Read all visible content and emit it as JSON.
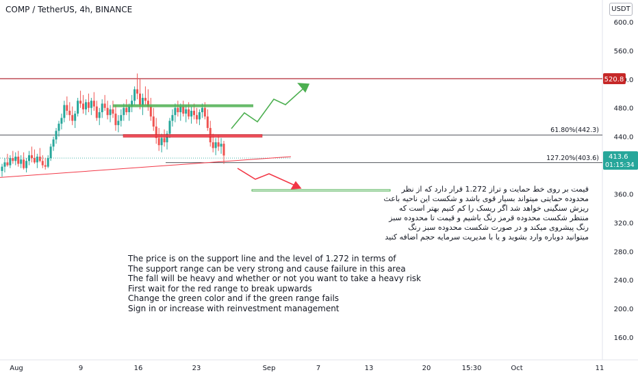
{
  "header": {
    "symbol_title": "COMP / TetherUS, 4h, BINANCE",
    "currency_button": "USDT"
  },
  "colors": {
    "up": "#26a69a",
    "down": "#ef5350",
    "resistance": "#b22833",
    "green_zone": "#4caf50",
    "red_zone": "#f23645",
    "price_tag": "#26a69a",
    "resistance_tag": "#c62828"
  },
  "chart_data": {
    "type": "candlestick",
    "title": "COMP / TetherUS, 4h, BINANCE",
    "ylim": [
      140,
      620
    ],
    "y_ticks": [
      160,
      200,
      240,
      280,
      320,
      360,
      400,
      440,
      480,
      520,
      560,
      600
    ],
    "y_tick_labels": [
      "160.0",
      "200.0",
      "240.0",
      "280.0",
      "320.0",
      "360.0",
      "400.0",
      "440.0",
      "480.0",
      "520.0",
      "560.0",
      "600.0"
    ],
    "x_ticks": [
      "Aug",
      "9",
      "16",
      "23",
      "Sep",
      "7",
      "13",
      "20",
      "15:30",
      "Oct",
      "11"
    ],
    "candles": [
      {
        "o": 392,
        "h": 402,
        "l": 384,
        "c": 398
      },
      {
        "o": 398,
        "h": 410,
        "l": 390,
        "c": 404
      },
      {
        "o": 404,
        "h": 416,
        "l": 398,
        "c": 400
      },
      {
        "o": 400,
        "h": 414,
        "l": 396,
        "c": 410
      },
      {
        "o": 410,
        "h": 420,
        "l": 402,
        "c": 406
      },
      {
        "o": 406,
        "h": 418,
        "l": 400,
        "c": 412
      },
      {
        "o": 412,
        "h": 420,
        "l": 398,
        "c": 402
      },
      {
        "o": 402,
        "h": 414,
        "l": 396,
        "c": 408
      },
      {
        "o": 408,
        "h": 418,
        "l": 394,
        "c": 396
      },
      {
        "o": 396,
        "h": 410,
        "l": 390,
        "c": 406
      },
      {
        "o": 406,
        "h": 420,
        "l": 400,
        "c": 414
      },
      {
        "o": 414,
        "h": 426,
        "l": 404,
        "c": 410
      },
      {
        "o": 410,
        "h": 422,
        "l": 402,
        "c": 404
      },
      {
        "o": 404,
        "h": 416,
        "l": 396,
        "c": 412
      },
      {
        "o": 412,
        "h": 424,
        "l": 404,
        "c": 406
      },
      {
        "o": 406,
        "h": 414,
        "l": 396,
        "c": 400
      },
      {
        "o": 400,
        "h": 410,
        "l": 394,
        "c": 398
      },
      {
        "o": 398,
        "h": 414,
        "l": 396,
        "c": 410
      },
      {
        "o": 410,
        "h": 430,
        "l": 406,
        "c": 426
      },
      {
        "o": 426,
        "h": 440,
        "l": 420,
        "c": 436
      },
      {
        "o": 436,
        "h": 452,
        "l": 430,
        "c": 448
      },
      {
        "o": 448,
        "h": 462,
        "l": 440,
        "c": 458
      },
      {
        "o": 458,
        "h": 472,
        "l": 450,
        "c": 466
      },
      {
        "o": 466,
        "h": 490,
        "l": 460,
        "c": 484
      },
      {
        "o": 484,
        "h": 496,
        "l": 470,
        "c": 476
      },
      {
        "o": 476,
        "h": 488,
        "l": 462,
        "c": 470
      },
      {
        "o": 470,
        "h": 482,
        "l": 456,
        "c": 462
      },
      {
        "o": 462,
        "h": 476,
        "l": 452,
        "c": 472
      },
      {
        "o": 472,
        "h": 494,
        "l": 468,
        "c": 490
      },
      {
        "o": 490,
        "h": 504,
        "l": 480,
        "c": 486
      },
      {
        "o": 486,
        "h": 498,
        "l": 472,
        "c": 478
      },
      {
        "o": 478,
        "h": 492,
        "l": 470,
        "c": 488
      },
      {
        "o": 488,
        "h": 500,
        "l": 474,
        "c": 480
      },
      {
        "o": 480,
        "h": 494,
        "l": 470,
        "c": 490
      },
      {
        "o": 490,
        "h": 502,
        "l": 476,
        "c": 482
      },
      {
        "o": 482,
        "h": 490,
        "l": 462,
        "c": 466
      },
      {
        "o": 466,
        "h": 480,
        "l": 456,
        "c": 474
      },
      {
        "o": 474,
        "h": 492,
        "l": 466,
        "c": 486
      },
      {
        "o": 486,
        "h": 498,
        "l": 476,
        "c": 480
      },
      {
        "o": 480,
        "h": 490,
        "l": 464,
        "c": 470
      },
      {
        "o": 470,
        "h": 484,
        "l": 460,
        "c": 478
      },
      {
        "o": 478,
        "h": 490,
        "l": 466,
        "c": 472
      },
      {
        "o": 472,
        "h": 484,
        "l": 448,
        "c": 456
      },
      {
        "o": 456,
        "h": 470,
        "l": 446,
        "c": 462
      },
      {
        "o": 462,
        "h": 478,
        "l": 454,
        "c": 470
      },
      {
        "o": 470,
        "h": 486,
        "l": 462,
        "c": 480
      },
      {
        "o": 480,
        "h": 492,
        "l": 470,
        "c": 474
      },
      {
        "o": 474,
        "h": 486,
        "l": 462,
        "c": 482
      },
      {
        "o": 482,
        "h": 498,
        "l": 474,
        "c": 490
      },
      {
        "o": 490,
        "h": 510,
        "l": 484,
        "c": 506
      },
      {
        "o": 506,
        "h": 528,
        "l": 492,
        "c": 500
      },
      {
        "o": 500,
        "h": 520,
        "l": 478,
        "c": 484
      },
      {
        "o": 484,
        "h": 500,
        "l": 470,
        "c": 494
      },
      {
        "o": 494,
        "h": 510,
        "l": 484,
        "c": 490
      },
      {
        "o": 490,
        "h": 506,
        "l": 476,
        "c": 482
      },
      {
        "o": 482,
        "h": 494,
        "l": 462,
        "c": 468
      },
      {
        "o": 468,
        "h": 480,
        "l": 448,
        "c": 454
      },
      {
        "o": 454,
        "h": 466,
        "l": 430,
        "c": 438
      },
      {
        "o": 438,
        "h": 452,
        "l": 420,
        "c": 428
      },
      {
        "o": 428,
        "h": 444,
        "l": 418,
        "c": 438
      },
      {
        "o": 438,
        "h": 450,
        "l": 426,
        "c": 432
      },
      {
        "o": 432,
        "h": 448,
        "l": 422,
        "c": 444
      },
      {
        "o": 444,
        "h": 466,
        "l": 438,
        "c": 462
      },
      {
        "o": 462,
        "h": 478,
        "l": 454,
        "c": 470
      },
      {
        "o": 470,
        "h": 486,
        "l": 460,
        "c": 480
      },
      {
        "o": 480,
        "h": 490,
        "l": 468,
        "c": 474
      },
      {
        "o": 474,
        "h": 486,
        "l": 462,
        "c": 482
      },
      {
        "o": 482,
        "h": 490,
        "l": 468,
        "c": 472
      },
      {
        "o": 472,
        "h": 484,
        "l": 460,
        "c": 478
      },
      {
        "o": 478,
        "h": 488,
        "l": 464,
        "c": 468
      },
      {
        "o": 468,
        "h": 482,
        "l": 458,
        "c": 476
      },
      {
        "o": 476,
        "h": 486,
        "l": 464,
        "c": 470
      },
      {
        "o": 470,
        "h": 480,
        "l": 458,
        "c": 464
      },
      {
        "o": 464,
        "h": 478,
        "l": 456,
        "c": 474
      },
      {
        "o": 474,
        "h": 486,
        "l": 466,
        "c": 480
      },
      {
        "o": 480,
        "h": 488,
        "l": 464,
        "c": 468
      },
      {
        "o": 468,
        "h": 478,
        "l": 448,
        "c": 452
      },
      {
        "o": 452,
        "h": 462,
        "l": 426,
        "c": 432
      },
      {
        "o": 432,
        "h": 444,
        "l": 418,
        "c": 424
      },
      {
        "o": 424,
        "h": 438,
        "l": 414,
        "c": 432
      },
      {
        "o": 432,
        "h": 442,
        "l": 420,
        "c": 426
      },
      {
        "o": 426,
        "h": 438,
        "l": 416,
        "c": 430
      },
      {
        "o": 430,
        "h": 434,
        "l": 402,
        "c": 413.6
      }
    ],
    "horizontal_levels": [
      {
        "value": 520.8,
        "label": "520.8"
      },
      {
        "value": 442.3,
        "label": "61.80%(442.3)"
      },
      {
        "value": 403.6,
        "label": "127.20%(403.6)"
      }
    ],
    "zones": [
      {
        "color": "green",
        "from": 481,
        "to": 485
      },
      {
        "color": "red",
        "from": 439,
        "to": 443
      },
      {
        "color": "green",
        "from": 364,
        "to": 366
      }
    ],
    "current_price": "413.6",
    "countdown": "01:15:34",
    "fib_labels": [
      "61.80%(442.3)",
      "127.20%(403.6)"
    ],
    "resistance_label": "520.8"
  },
  "notes": {
    "persian": [
      "قیمت بر روی خط حمایت و تراز 1.272 قرار دارد که از نظر",
      "محدوده حمایتی میتواند بسیار قوی باشد و شکست این ناحیه باعث",
      "ریزش سنگینی خواهد شد اگر ریسک را کم کنیم بهتر است که",
      "منتظر شکست محدوده قرمز رنگ باشیم و قیمت تا محدوده سبز",
      "رنگ پیشروی میکند و در صورت شکست محدوده سبز رنگ",
      "میتوانید دوباره وارد بشوید و یا با مدیریت سرمایه حجم اضافه کنید"
    ],
    "english": [
      "The price is on the support line and the level of 1.272 in terms of",
      "The support range can be very strong and cause failure in this area",
      "The fall will be heavy and whether or not you want to take a heavy risk",
      "First wait for the red range to break upwards",
      "Change the green color and if the green range fails",
      "Sign in or increase with reinvestment management"
    ]
  }
}
